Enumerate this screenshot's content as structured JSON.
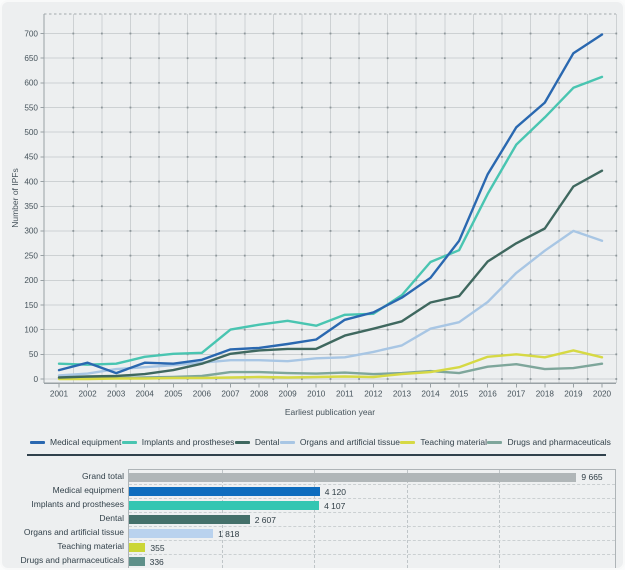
{
  "chart_data": [
    {
      "type": "line",
      "title": "",
      "xlabel": "Earliest publication year",
      "ylabel": "Number of IPFs",
      "x": [
        2001,
        2002,
        2003,
        2004,
        2005,
        2006,
        2007,
        2008,
        2009,
        2010,
        2011,
        2012,
        2013,
        2014,
        2015,
        2016,
        2017,
        2018,
        2019,
        2020
      ],
      "ylim": [
        0,
        700
      ],
      "yticks": [
        0,
        50,
        100,
        150,
        200,
        250,
        300,
        350,
        400,
        450,
        500,
        550,
        600,
        650,
        700
      ],
      "grid": true,
      "legend_position": "bottom",
      "series": [
        {
          "name": "Medical equipment",
          "color": "#2a68b0",
          "values": [
            18,
            33,
            12,
            33,
            31,
            39,
            60,
            63,
            71,
            80,
            120,
            135,
            165,
            205,
            280,
            415,
            510,
            560,
            660,
            698
          ]
        },
        {
          "name": "Implants and prostheses",
          "color": "#49c5b1",
          "values": [
            31,
            29,
            31,
            45,
            51,
            53,
            100,
            110,
            118,
            108,
            130,
            132,
            170,
            237,
            261,
            375,
            475,
            530,
            590,
            612
          ]
        },
        {
          "name": "Dental",
          "color": "#3f685f",
          "values": [
            3,
            5,
            6,
            10,
            18,
            31,
            51,
            58,
            61,
            61,
            88,
            102,
            117,
            155,
            168,
            238,
            275,
            305,
            390,
            422
          ]
        },
        {
          "name": "Organs and artificial tissue",
          "color": "#a8c6e4",
          "values": [
            7,
            11,
            20,
            24,
            28,
            33,
            38,
            38,
            36,
            42,
            44,
            55,
            68,
            102,
            115,
            156,
            215,
            260,
            300,
            280
          ]
        },
        {
          "name": "Teaching material",
          "color": "#d6d944",
          "values": [
            0,
            0,
            1,
            1,
            2,
            2,
            3,
            4,
            3,
            4,
            5,
            4,
            10,
            14,
            24,
            45,
            50,
            44,
            58,
            44
          ]
        },
        {
          "name": "Drugs and pharmaceuticals",
          "color": "#7ea69b",
          "values": [
            2,
            1,
            2,
            3,
            4,
            6,
            14,
            14,
            12,
            11,
            13,
            10,
            12,
            16,
            12,
            25,
            30,
            20,
            22,
            31
          ]
        }
      ]
    },
    {
      "type": "bar",
      "orientation": "horizontal",
      "categories": [
        "Grand total",
        "Medical equipment",
        "Implants and prostheses",
        "Dental",
        "Organs and artificial tissue",
        "Teaching material",
        "Drugs and pharmaceuticals"
      ],
      "values": [
        9665,
        4120,
        4107,
        2607,
        1818,
        355,
        336
      ],
      "value_labels": [
        "9 665",
        "4 120",
        "4 107",
        "2 607",
        "1 818",
        "355",
        "336"
      ],
      "colors": [
        "#b0b6b8",
        "#0d6cbe",
        "#33c6b2",
        "#44706a",
        "#b9d2ee",
        "#cbd637",
        "#5e9089"
      ],
      "xlim": [
        0,
        10500
      ],
      "grid_step": 2000
    }
  ]
}
